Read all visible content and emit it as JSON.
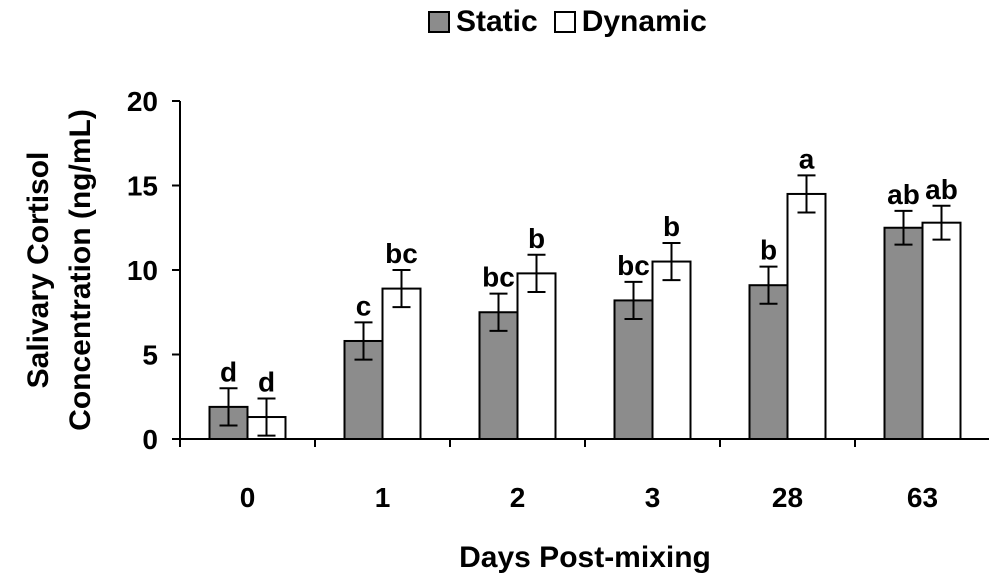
{
  "chart_data": {
    "type": "bar",
    "categories": [
      "0",
      "1",
      "2",
      "3",
      "28",
      "63"
    ],
    "xlabel": "Days Post-mixing",
    "ylabel": "Salivary Cortisol Concentration (ng/mL)",
    "ylabel_lines": [
      "Salivary Cortisol",
      "Concentration (ng/mL)"
    ],
    "ylim": [
      0,
      20
    ],
    "yticks": [
      0,
      5,
      10,
      15,
      20
    ],
    "grid": false,
    "legend_position": "top-center",
    "series": [
      {
        "name": "Static",
        "color": "#8c8c8c",
        "values": [
          1.9,
          5.8,
          7.5,
          8.2,
          9.1,
          12.5
        ],
        "errors": [
          1.1,
          1.1,
          1.1,
          1.1,
          1.1,
          1.0
        ],
        "labels": [
          "d",
          "c",
          "bc",
          "bc",
          "b",
          "ab"
        ]
      },
      {
        "name": "Dynamic",
        "color": "#ffffff",
        "values": [
          1.3,
          8.9,
          9.8,
          10.5,
          14.5,
          12.8
        ],
        "errors": [
          1.1,
          1.1,
          1.1,
          1.1,
          1.1,
          1.0
        ],
        "labels": [
          "d",
          "bc",
          "b",
          "b",
          "a",
          "ab"
        ]
      }
    ]
  }
}
